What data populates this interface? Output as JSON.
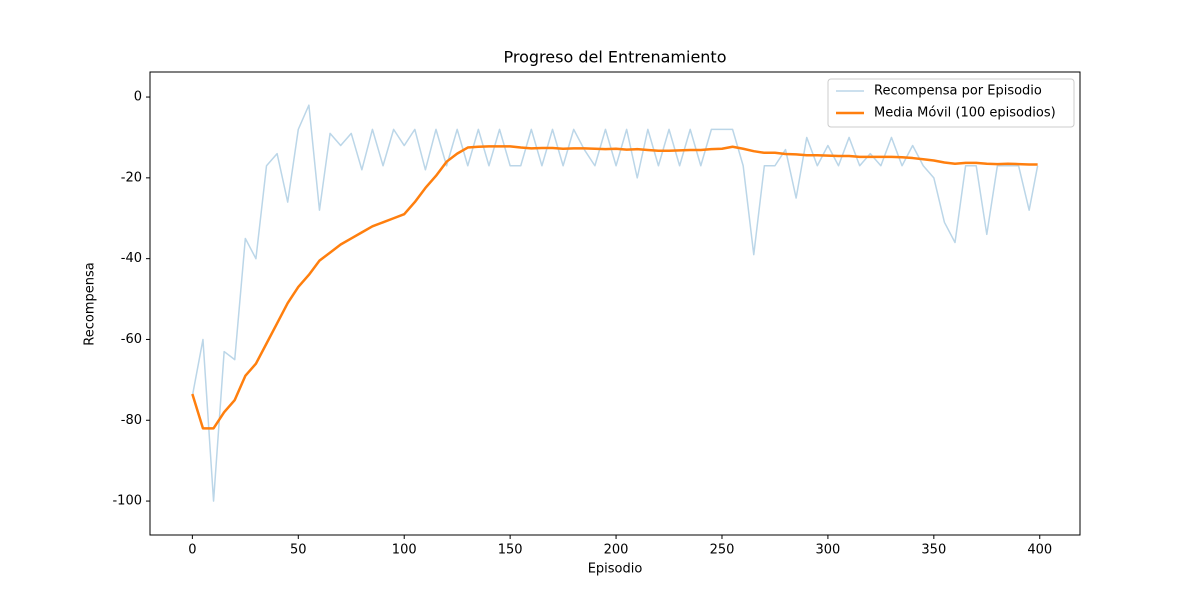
{
  "chart_data": {
    "type": "line",
    "title": "Progreso del Entrenamiento",
    "x_label": "Episodio",
    "y_label": "Recompensa",
    "x": [
      0,
      5,
      10,
      15,
      20,
      25,
      30,
      35,
      40,
      45,
      50,
      55,
      60,
      65,
      70,
      75,
      80,
      85,
      90,
      95,
      100,
      105,
      110,
      115,
      120,
      125,
      130,
      135,
      140,
      145,
      150,
      155,
      160,
      165,
      170,
      175,
      180,
      185,
      190,
      195,
      200,
      205,
      210,
      215,
      220,
      225,
      230,
      235,
      240,
      245,
      250,
      255,
      260,
      265,
      270,
      275,
      280,
      285,
      290,
      295,
      300,
      305,
      310,
      315,
      320,
      325,
      330,
      335,
      340,
      345,
      350,
      355,
      360,
      365,
      370,
      375,
      380,
      385,
      390,
      395,
      399
    ],
    "series": [
      {
        "name": "Recompensa por Episodio",
        "color": "#1f77b4",
        "alpha": 0.3,
        "width": 1.5,
        "values": [
          -74,
          -60,
          -100,
          -63,
          -65,
          -35,
          -40,
          -17,
          -14,
          -26,
          -8,
          -2,
          -28,
          -9,
          -12,
          -9,
          -18,
          -8,
          -17,
          -8,
          -12,
          -8,
          -18,
          -8,
          -17,
          -8,
          -17,
          -8,
          -17,
          -8,
          -17,
          -17,
          -8,
          -17,
          -8,
          -17,
          -8,
          -13,
          -17,
          -8,
          -17,
          -8,
          -20,
          -8,
          -17,
          -8,
          -17,
          -8,
          -17,
          -8,
          -8,
          -8,
          -17,
          -39,
          -17,
          -17,
          -13,
          -25,
          -10,
          -17,
          -12,
          -17,
          -10,
          -17,
          -14,
          -17,
          -10,
          -17,
          -12,
          -17,
          -20,
          -31,
          -36,
          -17,
          -17,
          -34,
          -17,
          -17,
          -17,
          -28,
          -17
        ]
      },
      {
        "name": "Media Móvil (100 episodios)",
        "color": "#ff7f0e",
        "alpha": 1,
        "width": 2.5,
        "values": [
          -73.5,
          -82,
          -82,
          -78,
          -75,
          -69,
          -66,
          -61,
          -56,
          -51,
          -47,
          -44,
          -40.5,
          -38.5,
          -36.5,
          -35,
          -33.5,
          -32,
          -31,
          -30,
          -29,
          -26,
          -22.5,
          -19.5,
          -16,
          -14,
          -12.5,
          -12.3,
          -12.2,
          -12.2,
          -12.2,
          -12.5,
          -12.7,
          -12.6,
          -12.6,
          -12.8,
          -12.7,
          -12.7,
          -12.8,
          -12.9,
          -12.8,
          -13,
          -12.9,
          -13.1,
          -13.3,
          -13.3,
          -13.2,
          -13.1,
          -13.1,
          -12.9,
          -12.8,
          -12.3,
          -12.8,
          -13.4,
          -13.8,
          -13.8,
          -14.1,
          -14.2,
          -14.4,
          -14.4,
          -14.5,
          -14.6,
          -14.6,
          -14.8,
          -14.8,
          -14.8,
          -14.8,
          -14.9,
          -15.1,
          -15.4,
          -15.7,
          -16.2,
          -16.5,
          -16.3,
          -16.3,
          -16.5,
          -16.6,
          -16.5,
          -16.6,
          -16.7,
          -16.7
        ]
      }
    ],
    "xlim": [
      -20,
      419
    ],
    "ylim": [
      -108.4,
      6.2
    ],
    "xticks": [
      0,
      50,
      100,
      150,
      200,
      250,
      300,
      350,
      400
    ],
    "yticks": [
      -100,
      -80,
      -60,
      -40,
      -20,
      0
    ],
    "legend": "upper right",
    "grid": false
  }
}
